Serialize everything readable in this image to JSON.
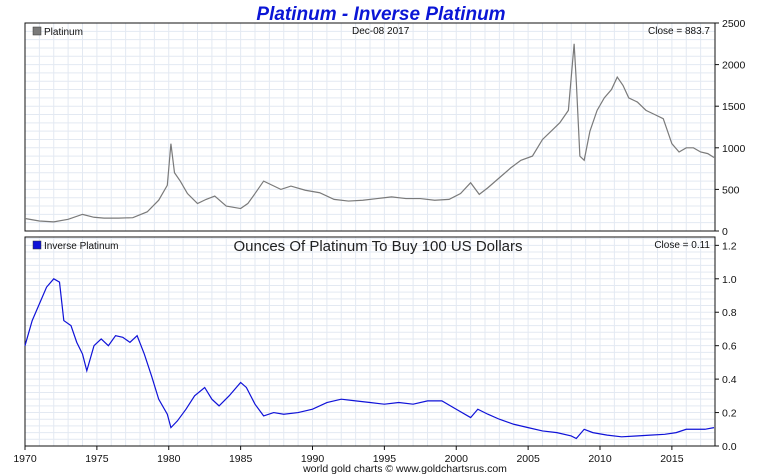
{
  "title": "Platinum - Inverse Platinum",
  "footer": "world gold charts © www.goldchartsrus.com",
  "chart_data": [
    {
      "type": "line",
      "legend": "Platinum",
      "date_label": "Dec-08  2017",
      "close_label": "Close = 883.7",
      "color": "#7a7a7a",
      "legend_color": "#7a7a7a",
      "xlim": [
        1970,
        2018
      ],
      "ylim": [
        0,
        2500
      ],
      "y_ticks": [
        0,
        500,
        1000,
        1500,
        2000,
        2500
      ],
      "grid": true,
      "series": [
        {
          "x": [
            1970.0,
            1971.0,
            1972.0,
            1973.0,
            1974.0,
            1974.8,
            1975.5,
            1976.5,
            1977.5,
            1978.5,
            1979.3,
            1979.9,
            1980.15,
            1980.4,
            1980.8,
            1981.3,
            1982.0,
            1982.6,
            1983.2,
            1984.0,
            1985.0,
            1985.5,
            1986.0,
            1986.6,
            1987.2,
            1987.8,
            1988.5,
            1989.5,
            1990.5,
            1991.5,
            1992.5,
            1993.5,
            1994.5,
            1995.5,
            1996.5,
            1997.5,
            1998.5,
            1999.5,
            2000.3,
            2001.0,
            2001.6,
            2002.2,
            2003.0,
            2003.8,
            2004.5,
            2005.3,
            2006.0,
            2006.6,
            2007.2,
            2007.8,
            2008.2,
            2008.35,
            2008.6,
            2008.9,
            2009.3,
            2009.8,
            2010.3,
            2010.8,
            2011.2,
            2011.6,
            2012.0,
            2012.6,
            2013.2,
            2013.8,
            2014.4,
            2015.0,
            2015.5,
            2016.0,
            2016.5,
            2017.0,
            2017.5,
            2017.93
          ],
          "y": [
            150,
            120,
            110,
            140,
            200,
            165,
            155,
            155,
            160,
            230,
            370,
            550,
            1050,
            700,
            600,
            450,
            330,
            380,
            420,
            300,
            270,
            330,
            450,
            600,
            550,
            500,
            540,
            490,
            460,
            380,
            360,
            370,
            390,
            410,
            390,
            390,
            370,
            380,
            450,
            580,
            440,
            520,
            640,
            760,
            850,
            900,
            1100,
            1200,
            1300,
            1450,
            2250,
            1800,
            900,
            850,
            1200,
            1450,
            1600,
            1700,
            1850,
            1750,
            1600,
            1550,
            1450,
            1400,
            1350,
            1050,
            950,
            1000,
            1000,
            950,
            930,
            884
          ]
        }
      ]
    },
    {
      "type": "line",
      "legend": "Inverse Platinum",
      "subtitle": "Ounces Of Platinum To Buy 100 US Dollars",
      "close_label": "Close = 0.11",
      "color": "#0f12d8",
      "legend_color": "#0f12d8",
      "xlim": [
        1970,
        2018
      ],
      "ylim": [
        0,
        1.25
      ],
      "y_ticks": [
        0.0,
        0.2,
        0.4,
        0.6,
        0.8,
        1.0,
        1.2
      ],
      "x_ticks": [
        1970,
        1975,
        1980,
        1985,
        1990,
        1995,
        2000,
        2005,
        2010,
        2015
      ],
      "grid": true,
      "series": [
        {
          "x": [
            1970.0,
            1970.5,
            1971.0,
            1971.5,
            1972.0,
            1972.4,
            1972.7,
            1973.2,
            1973.6,
            1974.0,
            1974.3,
            1974.8,
            1975.3,
            1975.8,
            1976.3,
            1976.8,
            1977.3,
            1977.8,
            1978.3,
            1978.8,
            1979.3,
            1979.9,
            1980.15,
            1980.6,
            1981.2,
            1981.8,
            1982.5,
            1983.0,
            1983.5,
            1984.2,
            1985.0,
            1985.4,
            1986.0,
            1986.6,
            1987.3,
            1988.0,
            1989.0,
            1990.0,
            1991.0,
            1992.0,
            1993.0,
            1994.0,
            1995.0,
            1996.0,
            1997.0,
            1998.0,
            1999.0,
            2000.0,
            2001.0,
            2001.5,
            2002.2,
            2003.0,
            2004.0,
            2005.0,
            2006.0,
            2007.0,
            2008.0,
            2008.35,
            2008.9,
            2009.5,
            2010.5,
            2011.5,
            2012.5,
            2013.5,
            2014.5,
            2015.3,
            2016.0,
            2016.8,
            2017.3,
            2017.93
          ],
          "y": [
            0.6,
            0.75,
            0.85,
            0.95,
            1.0,
            0.98,
            0.75,
            0.72,
            0.62,
            0.55,
            0.45,
            0.6,
            0.64,
            0.6,
            0.66,
            0.65,
            0.62,
            0.66,
            0.55,
            0.42,
            0.28,
            0.19,
            0.11,
            0.15,
            0.22,
            0.3,
            0.35,
            0.28,
            0.24,
            0.3,
            0.38,
            0.35,
            0.25,
            0.18,
            0.2,
            0.19,
            0.2,
            0.22,
            0.26,
            0.28,
            0.27,
            0.26,
            0.25,
            0.26,
            0.25,
            0.27,
            0.27,
            0.22,
            0.17,
            0.22,
            0.19,
            0.16,
            0.13,
            0.11,
            0.09,
            0.08,
            0.06,
            0.045,
            0.1,
            0.08,
            0.065,
            0.055,
            0.06,
            0.065,
            0.07,
            0.08,
            0.1,
            0.1,
            0.1,
            0.11
          ]
        }
      ]
    }
  ]
}
